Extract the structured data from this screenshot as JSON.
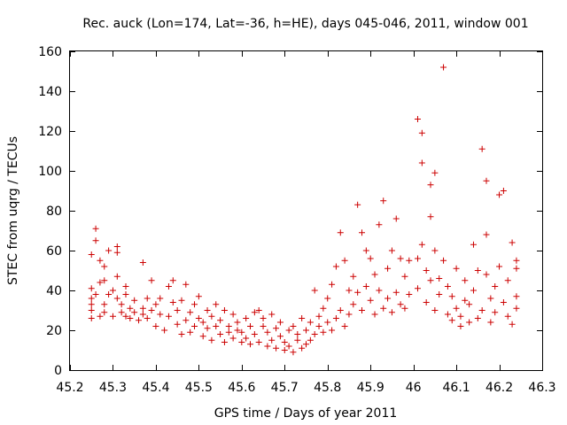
{
  "chart_data": {
    "type": "scatter",
    "title": "Rec. auck (Lon=174, Lat=-36, h=HE), days 045-046, 2011, window 001",
    "xlabel": "GPS time / Days of year 2011",
    "ylabel": "STEC from uqrg / TECUs",
    "xlim": [
      45.2,
      46.3
    ],
    "ylim": [
      0,
      160
    ],
    "x_ticks": [
      45.2,
      45.3,
      45.4,
      45.5,
      45.6,
      45.7,
      45.8,
      45.9,
      46,
      46.1,
      46.2,
      46.3
    ],
    "x_tick_labels": [
      "45.2",
      "45.3",
      "45.4",
      "45.5",
      "45.6",
      "45.7",
      "45.8",
      "45.9",
      "46",
      "46.1",
      "46.2",
      "46.3"
    ],
    "y_ticks": [
      0,
      20,
      40,
      60,
      80,
      100,
      120,
      140,
      160
    ],
    "y_tick_labels": [
      "0",
      "20",
      "40",
      "60",
      "80",
      "100",
      "120",
      "140",
      "160"
    ],
    "marker": "plus",
    "color": "#cc0000",
    "series": [
      {
        "name": "STEC",
        "points": [
          [
            45.25,
            58
          ],
          [
            45.26,
            71
          ],
          [
            45.26,
            65
          ],
          [
            45.27,
            55
          ],
          [
            45.28,
            52
          ],
          [
            45.29,
            60
          ],
          [
            45.31,
            62
          ],
          [
            45.31,
            59
          ],
          [
            45.31,
            47
          ],
          [
            45.33,
            42
          ],
          [
            45.37,
            54
          ],
          [
            45.39,
            45
          ],
          [
            45.25,
            41
          ],
          [
            45.25,
            36
          ],
          [
            45.25,
            33
          ],
          [
            45.25,
            30
          ],
          [
            45.25,
            26
          ],
          [
            45.26,
            38
          ],
          [
            45.27,
            44
          ],
          [
            45.27,
            27
          ],
          [
            45.28,
            45
          ],
          [
            45.28,
            33
          ],
          [
            45.28,
            29
          ],
          [
            45.29,
            38
          ],
          [
            45.3,
            40
          ],
          [
            45.3,
            27
          ],
          [
            45.31,
            36
          ],
          [
            45.32,
            29
          ],
          [
            45.32,
            33
          ],
          [
            45.33,
            38
          ],
          [
            45.33,
            27
          ],
          [
            45.34,
            31
          ],
          [
            45.34,
            26
          ],
          [
            45.35,
            35
          ],
          [
            45.35,
            29
          ],
          [
            45.36,
            25
          ],
          [
            45.37,
            28
          ],
          [
            45.37,
            31
          ],
          [
            45.38,
            36
          ],
          [
            45.38,
            26
          ],
          [
            45.39,
            30
          ],
          [
            45.4,
            33
          ],
          [
            45.4,
            22
          ],
          [
            45.41,
            28
          ],
          [
            45.41,
            36
          ],
          [
            45.42,
            20
          ],
          [
            45.43,
            42
          ],
          [
            45.43,
            27
          ],
          [
            45.44,
            45
          ],
          [
            45.44,
            34
          ],
          [
            45.45,
            30
          ],
          [
            45.45,
            23
          ],
          [
            45.46,
            18
          ],
          [
            45.46,
            35
          ],
          [
            45.47,
            43
          ],
          [
            45.47,
            25
          ],
          [
            45.48,
            29
          ],
          [
            45.48,
            19
          ],
          [
            45.49,
            33
          ],
          [
            45.49,
            22
          ],
          [
            45.5,
            37
          ],
          [
            45.5,
            26
          ],
          [
            45.51,
            24
          ],
          [
            45.51,
            17
          ],
          [
            45.52,
            30
          ],
          [
            45.52,
            21
          ],
          [
            45.53,
            27
          ],
          [
            45.53,
            15
          ],
          [
            45.54,
            33
          ],
          [
            45.54,
            22
          ],
          [
            45.55,
            25
          ],
          [
            45.55,
            18
          ],
          [
            45.56,
            30
          ],
          [
            45.56,
            14
          ],
          [
            45.57,
            22
          ],
          [
            45.57,
            19
          ],
          [
            45.58,
            28
          ],
          [
            45.58,
            16
          ],
          [
            45.59,
            20
          ],
          [
            45.59,
            24
          ],
          [
            45.6,
            14
          ],
          [
            45.6,
            19
          ],
          [
            45.61,
            26
          ],
          [
            45.61,
            16
          ],
          [
            45.62,
            22
          ],
          [
            45.62,
            13
          ],
          [
            45.63,
            29
          ],
          [
            45.63,
            18
          ],
          [
            45.64,
            30
          ],
          [
            45.64,
            14
          ],
          [
            45.65,
            22
          ],
          [
            45.65,
            26
          ],
          [
            45.66,
            12
          ],
          [
            45.66,
            19
          ],
          [
            45.67,
            28
          ],
          [
            45.67,
            15
          ],
          [
            45.68,
            21
          ],
          [
            45.68,
            11
          ],
          [
            45.69,
            24
          ],
          [
            45.69,
            17
          ],
          [
            45.7,
            10
          ],
          [
            45.7,
            14
          ],
          [
            45.71,
            20
          ],
          [
            45.71,
            12
          ],
          [
            45.72,
            22
          ],
          [
            45.72,
            9
          ],
          [
            45.73,
            15
          ],
          [
            45.73,
            18
          ],
          [
            45.74,
            26
          ],
          [
            45.74,
            11
          ],
          [
            45.75,
            13
          ],
          [
            45.75,
            20
          ],
          [
            45.76,
            24
          ],
          [
            45.76,
            15
          ],
          [
            45.77,
            40
          ],
          [
            45.77,
            18
          ],
          [
            45.78,
            22
          ],
          [
            45.78,
            27
          ],
          [
            45.79,
            19
          ],
          [
            45.79,
            31
          ],
          [
            45.8,
            36
          ],
          [
            45.8,
            24
          ],
          [
            45.81,
            43
          ],
          [
            45.81,
            20
          ],
          [
            45.82,
            52
          ],
          [
            45.82,
            26
          ],
          [
            45.83,
            69
          ],
          [
            45.83,
            30
          ],
          [
            45.84,
            55
          ],
          [
            45.84,
            22
          ],
          [
            45.85,
            40
          ],
          [
            45.85,
            28
          ],
          [
            45.86,
            47
          ],
          [
            45.86,
            33
          ],
          [
            45.87,
            83
          ],
          [
            45.87,
            39
          ],
          [
            45.88,
            69
          ],
          [
            45.88,
            30
          ],
          [
            45.89,
            60
          ],
          [
            45.89,
            42
          ],
          [
            45.9,
            56
          ],
          [
            45.9,
            35
          ],
          [
            45.91,
            48
          ],
          [
            45.91,
            28
          ],
          [
            45.92,
            73
          ],
          [
            45.92,
            40
          ],
          [
            45.93,
            85
          ],
          [
            45.93,
            31
          ],
          [
            45.94,
            51
          ],
          [
            45.94,
            36
          ],
          [
            45.95,
            60
          ],
          [
            45.95,
            29
          ],
          [
            45.96,
            76
          ],
          [
            45.96,
            39
          ],
          [
            45.97,
            56
          ],
          [
            45.97,
            33
          ],
          [
            45.98,
            47
          ],
          [
            45.98,
            31
          ],
          [
            45.99,
            55
          ],
          [
            45.99,
            38
          ],
          [
            46.01,
            126
          ],
          [
            46.01,
            56
          ],
          [
            46.01,
            41
          ],
          [
            46.02,
            104
          ],
          [
            46.02,
            119
          ],
          [
            46.02,
            63
          ],
          [
            46.03,
            50
          ],
          [
            46.03,
            34
          ],
          [
            46.04,
            77
          ],
          [
            46.04,
            93
          ],
          [
            46.04,
            45
          ],
          [
            46.05,
            99
          ],
          [
            46.05,
            60
          ],
          [
            46.05,
            30
          ],
          [
            46.06,
            46
          ],
          [
            46.06,
            38
          ],
          [
            46.07,
            152
          ],
          [
            46.07,
            55
          ],
          [
            46.08,
            42
          ],
          [
            46.08,
            28
          ],
          [
            46.09,
            37
          ],
          [
            46.09,
            25
          ],
          [
            46.1,
            51
          ],
          [
            46.1,
            31
          ],
          [
            46.11,
            27
          ],
          [
            46.11,
            22
          ],
          [
            46.12,
            35
          ],
          [
            46.12,
            45
          ],
          [
            46.13,
            24
          ],
          [
            46.13,
            33
          ],
          [
            46.14,
            63
          ],
          [
            46.14,
            40
          ],
          [
            46.15,
            50
          ],
          [
            46.15,
            26
          ],
          [
            46.16,
            111
          ],
          [
            46.16,
            30
          ],
          [
            46.17,
            95
          ],
          [
            46.17,
            48
          ],
          [
            46.17,
            68
          ],
          [
            46.18,
            36
          ],
          [
            46.18,
            24
          ],
          [
            46.19,
            42
          ],
          [
            46.19,
            29
          ],
          [
            46.2,
            88
          ],
          [
            46.2,
            52
          ],
          [
            46.21,
            90
          ],
          [
            46.21,
            34
          ],
          [
            46.22,
            27
          ],
          [
            46.22,
            45
          ],
          [
            46.23,
            64
          ],
          [
            46.23,
            23
          ],
          [
            46.24,
            55
          ],
          [
            46.24,
            51
          ],
          [
            46.24,
            37
          ],
          [
            46.24,
            31
          ]
        ]
      }
    ]
  }
}
